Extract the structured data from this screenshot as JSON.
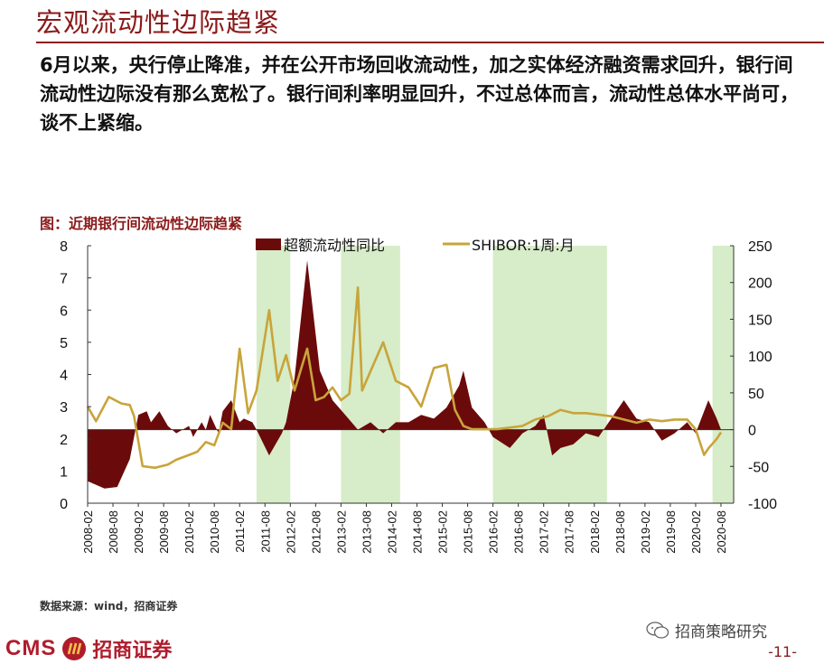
{
  "header": {
    "title": "宏观流动性边际趋紧"
  },
  "summary": {
    "text": "6月以来，央行停止降准，并在公开市场回收流动性，加之实体经济融资需求回升，银行间流动性边际没有那么宽松了。银行间利率明显回升，不过总体而言，流动性总体水平尚可，谈不上紧缩。"
  },
  "figure": {
    "caption": "图：近期银行间流动性边际趋紧"
  },
  "footer": {
    "source": "数据来源：wind，招商证券",
    "wechat": "招商策略研究",
    "brand": "CMS",
    "company": "招商证券",
    "page": "-11-"
  },
  "colors": {
    "accent": "#8b1a1a",
    "excess": "#6b0a0a",
    "shibor": "#c8a43a",
    "band": "#d7ecc8"
  },
  "chart_data": {
    "type": "area+line",
    "legend": [
      "超额流动性同比",
      "SHIBOR:1周:月"
    ],
    "yleft": {
      "lim": [
        0,
        8
      ],
      "ticks": [
        "0",
        "1",
        "2",
        "3",
        "4",
        "5",
        "6",
        "7",
        "8"
      ]
    },
    "yright": {
      "lim": [
        -100,
        250
      ],
      "ticks": [
        "-100",
        "-50",
        "0",
        "50",
        "100",
        "150",
        "200",
        "250"
      ]
    },
    "xticks": [
      "2008-02",
      "2008-08",
      "2009-02",
      "2009-08",
      "2010-02",
      "2010-08",
      "2011-02",
      "2011-08",
      "2012-02",
      "2012-08",
      "2013-02",
      "2013-08",
      "2014-02",
      "2014-08",
      "2015-02",
      "2015-08",
      "2016-02",
      "2016-08",
      "2017-02",
      "2017-08",
      "2018-02",
      "2018-08",
      "2019-02",
      "2019-08",
      "2020-02",
      "2020-08"
    ],
    "shaded_periods": [
      [
        "2011-06",
        "2012-02"
      ],
      [
        "2013-02",
        "2014-04"
      ],
      [
        "2016-02",
        "2018-05"
      ],
      [
        "2020-06",
        "2020-11"
      ]
    ],
    "series": [
      {
        "name": "超额流动性同比",
        "axis": "right",
        "points": [
          [
            "2008-02",
            -70
          ],
          [
            "2008-06",
            -80
          ],
          [
            "2008-09",
            -78
          ],
          [
            "2008-12",
            -40
          ],
          [
            "2009-01",
            -10
          ],
          [
            "2009-02",
            20
          ],
          [
            "2009-04",
            25
          ],
          [
            "2009-05",
            10
          ],
          [
            "2009-07",
            25
          ],
          [
            "2009-09",
            5
          ],
          [
            "2009-11",
            -5
          ],
          [
            "2010-02",
            5
          ],
          [
            "2010-03",
            -10
          ],
          [
            "2010-05",
            10
          ],
          [
            "2010-06",
            0
          ],
          [
            "2010-07",
            20
          ],
          [
            "2010-09",
            -5
          ],
          [
            "2010-10",
            25
          ],
          [
            "2010-12",
            40
          ],
          [
            "2011-02",
            10
          ],
          [
            "2011-03",
            15
          ],
          [
            "2011-05",
            10
          ],
          [
            "2011-06",
            0
          ],
          [
            "2011-09",
            -35
          ],
          [
            "2011-12",
            -5
          ],
          [
            "2012-01",
            10
          ],
          [
            "2012-03",
            70
          ],
          [
            "2012-06",
            230
          ],
          [
            "2012-09",
            80
          ],
          [
            "2012-12",
            40
          ],
          [
            "2013-03",
            20
          ],
          [
            "2013-06",
            0
          ],
          [
            "2013-09",
            10
          ],
          [
            "2013-12",
            -5
          ],
          [
            "2014-03",
            10
          ],
          [
            "2014-06",
            10
          ],
          [
            "2014-09",
            20
          ],
          [
            "2014-12",
            15
          ],
          [
            "2015-03",
            30
          ],
          [
            "2015-06",
            60
          ],
          [
            "2015-07",
            80
          ],
          [
            "2015-09",
            30
          ],
          [
            "2015-12",
            10
          ],
          [
            "2016-02",
            -10
          ],
          [
            "2016-06",
            -25
          ],
          [
            "2016-09",
            -5
          ],
          [
            "2016-12",
            5
          ],
          [
            "2017-02",
            20
          ],
          [
            "2017-04",
            -35
          ],
          [
            "2017-06",
            -25
          ],
          [
            "2017-09",
            -20
          ],
          [
            "2017-12",
            -5
          ],
          [
            "2018-03",
            -10
          ],
          [
            "2018-06",
            15
          ],
          [
            "2018-09",
            40
          ],
          [
            "2018-12",
            15
          ],
          [
            "2019-03",
            10
          ],
          [
            "2019-06",
            -15
          ],
          [
            "2019-09",
            -5
          ],
          [
            "2019-12",
            10
          ],
          [
            "2020-02",
            -5
          ],
          [
            "2020-05",
            40
          ],
          [
            "2020-07",
            15
          ],
          [
            "2020-08",
            0
          ]
        ]
      },
      {
        "name": "SHIBOR:1周:月",
        "axis": "left",
        "points": [
          [
            "2008-02",
            3.0
          ],
          [
            "2008-04",
            2.55
          ],
          [
            "2008-07",
            3.3
          ],
          [
            "2008-10",
            3.1
          ],
          [
            "2008-12",
            3.05
          ],
          [
            "2009-01",
            2.7
          ],
          [
            "2009-03",
            1.15
          ],
          [
            "2009-06",
            1.1
          ],
          [
            "2009-09",
            1.2
          ],
          [
            "2009-11",
            1.35
          ],
          [
            "2010-02",
            1.5
          ],
          [
            "2010-04",
            1.6
          ],
          [
            "2010-06",
            1.9
          ],
          [
            "2010-08",
            1.8
          ],
          [
            "2010-10",
            2.5
          ],
          [
            "2010-12",
            2.3
          ],
          [
            "2011-02",
            4.8
          ],
          [
            "2011-04",
            2.8
          ],
          [
            "2011-06",
            3.5
          ],
          [
            "2011-09",
            6.0
          ],
          [
            "2011-11",
            3.8
          ],
          [
            "2012-01",
            4.6
          ],
          [
            "2012-03",
            3.5
          ],
          [
            "2012-06",
            4.8
          ],
          [
            "2012-08",
            3.2
          ],
          [
            "2012-10",
            3.3
          ],
          [
            "2012-12",
            3.6
          ],
          [
            "2013-02",
            3.2
          ],
          [
            "2013-04",
            3.4
          ],
          [
            "2013-06",
            6.7
          ],
          [
            "2013-07",
            3.5
          ],
          [
            "2013-09",
            4.1
          ],
          [
            "2013-12",
            5.0
          ],
          [
            "2014-03",
            3.8
          ],
          [
            "2014-06",
            3.6
          ],
          [
            "2014-09",
            3.0
          ],
          [
            "2014-12",
            4.2
          ],
          [
            "2015-03",
            4.3
          ],
          [
            "2015-05",
            2.9
          ],
          [
            "2015-07",
            2.4
          ],
          [
            "2015-09",
            2.3
          ],
          [
            "2015-12",
            2.3
          ],
          [
            "2016-03",
            2.3
          ],
          [
            "2016-06",
            2.35
          ],
          [
            "2016-09",
            2.4
          ],
          [
            "2016-12",
            2.6
          ],
          [
            "2017-03",
            2.7
          ],
          [
            "2017-06",
            2.9
          ],
          [
            "2017-09",
            2.8
          ],
          [
            "2017-12",
            2.8
          ],
          [
            "2018-03",
            2.75
          ],
          [
            "2018-06",
            2.7
          ],
          [
            "2018-09",
            2.6
          ],
          [
            "2018-12",
            2.5
          ],
          [
            "2019-03",
            2.6
          ],
          [
            "2019-06",
            2.55
          ],
          [
            "2019-09",
            2.6
          ],
          [
            "2019-12",
            2.6
          ],
          [
            "2020-02",
            2.3
          ],
          [
            "2020-04",
            1.5
          ],
          [
            "2020-05",
            1.7
          ],
          [
            "2020-07",
            2.0
          ],
          [
            "2020-08",
            2.2
          ]
        ]
      }
    ]
  }
}
